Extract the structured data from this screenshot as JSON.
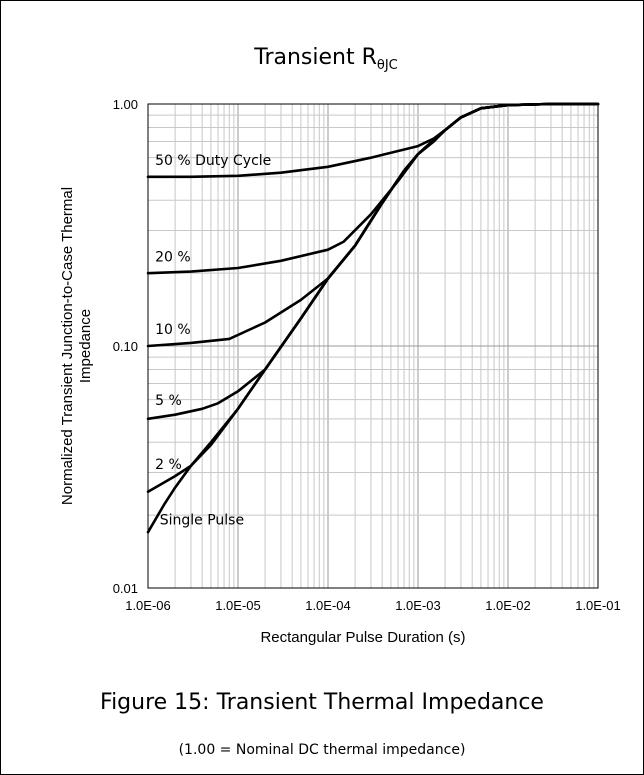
{
  "figure": {
    "caption": "Figure 15: Transient Thermal Impedance",
    "note": "(1.00 = Nominal DC thermal impedance)"
  },
  "chart_data": {
    "type": "line",
    "title_main": "Transient R",
    "title_sub": "θJC",
    "xlabel": "Rectangular Pulse Duration (s)",
    "ylabel_line1": "Normalized Transient Junction-to-Case Thermal",
    "ylabel_line2": "Impedance",
    "x_scale": "log",
    "y_scale": "log",
    "xlim": [
      1e-06,
      0.1
    ],
    "ylim": [
      0.01,
      1.0
    ],
    "grid": true,
    "x_ticks": [
      {
        "value": 1e-06,
        "label": "1.0E-06"
      },
      {
        "value": 1e-05,
        "label": "1.0E-05"
      },
      {
        "value": 0.0001,
        "label": "1.0E-04"
      },
      {
        "value": 0.001,
        "label": "1.0E-03"
      },
      {
        "value": 0.01,
        "label": "1.0E-02"
      },
      {
        "value": 0.1,
        "label": "1.0E-01"
      }
    ],
    "y_ticks": [
      {
        "value": 0.01,
        "label": "0.01"
      },
      {
        "value": 0.1,
        "label": "0.10"
      },
      {
        "value": 1.0,
        "label": "1.00"
      }
    ],
    "series": [
      {
        "name": "50 % Duty Cycle",
        "x": [
          1e-06,
          3e-06,
          1e-05,
          3e-05,
          0.0001,
          0.0003,
          0.001,
          0.0015,
          0.002,
          0.003,
          0.005,
          0.01,
          0.03,
          0.1
        ],
        "y": [
          0.5,
          0.5,
          0.505,
          0.52,
          0.55,
          0.6,
          0.67,
          0.72,
          0.78,
          0.88,
          0.96,
          0.99,
          1.0,
          1.0
        ]
      },
      {
        "name": "20 %",
        "x": [
          1e-06,
          3e-06,
          1e-05,
          3e-05,
          0.0001,
          0.00015,
          0.0003,
          0.0006,
          0.001,
          0.0015,
          0.002,
          0.003,
          0.005,
          0.01,
          0.03,
          0.1
        ],
        "y": [
          0.2,
          0.203,
          0.21,
          0.225,
          0.25,
          0.27,
          0.35,
          0.48,
          0.62,
          0.7,
          0.78,
          0.88,
          0.96,
          0.99,
          1.0,
          1.0
        ]
      },
      {
        "name": "10 %",
        "x": [
          1e-06,
          3e-06,
          8e-06,
          2e-05,
          5e-05,
          0.0001,
          0.0002,
          0.0004,
          0.0007,
          0.001,
          0.0015,
          0.002,
          0.003,
          0.005,
          0.01,
          0.03,
          0.1
        ],
        "y": [
          0.1,
          0.103,
          0.107,
          0.125,
          0.155,
          0.19,
          0.26,
          0.39,
          0.53,
          0.62,
          0.71,
          0.78,
          0.88,
          0.96,
          0.99,
          1.0,
          1.0
        ]
      },
      {
        "name": "5 %",
        "x": [
          1e-06,
          2e-06,
          4e-06,
          6e-06,
          1e-05,
          2e-05,
          5e-05,
          0.0001,
          0.0002,
          0.0004,
          0.0007,
          0.001,
          0.0015,
          0.002,
          0.003,
          0.005,
          0.01,
          0.03,
          0.1
        ],
        "y": [
          0.05,
          0.052,
          0.055,
          0.058,
          0.065,
          0.08,
          0.13,
          0.19,
          0.26,
          0.39,
          0.53,
          0.62,
          0.71,
          0.78,
          0.88,
          0.96,
          0.99,
          1.0,
          1.0
        ]
      },
      {
        "name": "2 %",
        "x": [
          1e-06,
          2e-06,
          3e-06,
          5e-06,
          1e-05,
          2e-05,
          5e-05,
          0.0001,
          0.0002,
          0.0004,
          0.0007,
          0.001,
          0.0015,
          0.002,
          0.003,
          0.005,
          0.01,
          0.03,
          0.1
        ],
        "y": [
          0.025,
          0.029,
          0.032,
          0.039,
          0.055,
          0.08,
          0.13,
          0.19,
          0.26,
          0.39,
          0.53,
          0.62,
          0.71,
          0.78,
          0.88,
          0.96,
          0.99,
          1.0,
          1.0
        ]
      },
      {
        "name": "Single Pulse",
        "x": [
          1e-06,
          1.5e-06,
          2e-06,
          3e-06,
          5e-06,
          1e-05,
          2e-05,
          5e-05,
          0.0001,
          0.0002,
          0.0004,
          0.0007,
          0.001,
          0.0015,
          0.002,
          0.003,
          0.005,
          0.01,
          0.03,
          0.1
        ],
        "y": [
          0.017,
          0.022,
          0.026,
          0.032,
          0.04,
          0.055,
          0.08,
          0.13,
          0.19,
          0.26,
          0.39,
          0.53,
          0.62,
          0.71,
          0.78,
          0.88,
          0.96,
          0.99,
          1.0,
          1.0
        ]
      }
    ],
    "annotations": [
      {
        "text": "50 % Duty Cycle",
        "x": 1.2e-06,
        "y": 0.56
      },
      {
        "text": "20 %",
        "x": 1.2e-06,
        "y": 0.223
      },
      {
        "text": "10 %",
        "x": 1.2e-06,
        "y": 0.112
      },
      {
        "text": "5 %",
        "x": 1.2e-06,
        "y": 0.057
      },
      {
        "text": "2 %",
        "x": 1.2e-06,
        "y": 0.031
      },
      {
        "text": "Single Pulse",
        "x": 1.35e-06,
        "y": 0.0183
      }
    ]
  }
}
